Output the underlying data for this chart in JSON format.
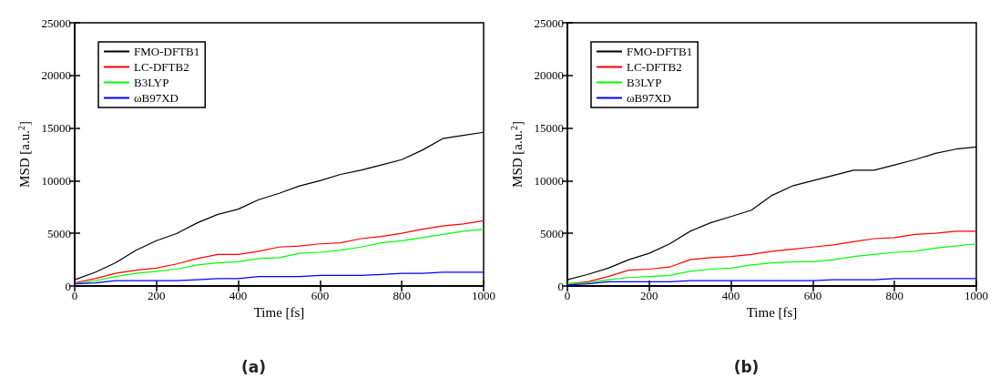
{
  "chart_data": [
    {
      "type": "line",
      "title": "(a)",
      "xlabel": "Time [fs]",
      "ylabel": "MSD [a.u.$^{2}$]",
      "xlim": [
        0,
        1000
      ],
      "xticks": [
        0,
        200,
        400,
        600,
        800,
        1000
      ],
      "ylim": [
        0,
        25000
      ],
      "yticks": [
        0,
        5000,
        10000,
        15000,
        20000,
        25000
      ],
      "grid": false,
      "legend": "top left",
      "marker": "none",
      "line_style": "solid",
      "x": [
        0,
        50,
        100,
        150,
        200,
        250,
        300,
        350,
        400,
        450,
        500,
        550,
        600,
        650,
        700,
        750,
        800,
        850,
        900,
        950,
        1000
      ],
      "series": [
        {
          "name": "FMO-DFTB1",
          "color": "#000000",
          "values": [
            600,
            1300,
            2200,
            3400,
            4300,
            5000,
            6000,
            6800,
            7300,
            8200,
            8800,
            9500,
            10000,
            10600,
            11000,
            11500,
            12000,
            12900,
            14000,
            14300,
            14600
          ]
        },
        {
          "name": "LC-DFTB2",
          "color": "#ff0000",
          "values": [
            300,
            700,
            1200,
            1500,
            1700,
            2100,
            2600,
            3000,
            3000,
            3300,
            3700,
            3800,
            4000,
            4100,
            4500,
            4700,
            5000,
            5400,
            5700,
            5900,
            6200
          ]
        },
        {
          "name": "B3LYP",
          "color": "#00ff00",
          "values": [
            200,
            500,
            900,
            1200,
            1400,
            1600,
            2000,
            2200,
            2300,
            2600,
            2700,
            3100,
            3200,
            3400,
            3700,
            4100,
            4300,
            4600,
            4900,
            5200,
            5400
          ]
        },
        {
          "name": "ωB97XD",
          "color": "#0000ff",
          "values": [
            200,
            300,
            500,
            500,
            500,
            500,
            600,
            700,
            700,
            900,
            900,
            900,
            1000,
            1000,
            1000,
            1100,
            1200,
            1200,
            1300,
            1300,
            1300
          ]
        }
      ]
    },
    {
      "type": "line",
      "title": "(b)",
      "xlabel": "Time [fs]",
      "ylabel": "MSD [a.u.$^{2}$]",
      "xlim": [
        0,
        1000
      ],
      "xticks": [
        0,
        200,
        400,
        600,
        800,
        1000
      ],
      "ylim": [
        0,
        25000
      ],
      "yticks": [
        0,
        5000,
        10000,
        15000,
        20000,
        25000
      ],
      "grid": false,
      "legend": "top left",
      "marker": "none",
      "line_style": "solid",
      "x": [
        0,
        50,
        100,
        150,
        200,
        250,
        300,
        350,
        400,
        450,
        500,
        550,
        600,
        650,
        700,
        750,
        800,
        850,
        900,
        950,
        1000
      ],
      "series": [
        {
          "name": "FMO-DFTB1",
          "color": "#000000",
          "values": [
            600,
            1100,
            1700,
            2500,
            3100,
            4000,
            5200,
            6000,
            6600,
            7200,
            8600,
            9500,
            10000,
            10500,
            11000,
            11000,
            11500,
            12000,
            12600,
            13000,
            13200
          ]
        },
        {
          "name": "LC-DFTB2",
          "color": "#ff0000",
          "values": [
            200,
            400,
            900,
            1500,
            1600,
            1800,
            2500,
            2700,
            2800,
            3000,
            3300,
            3500,
            3700,
            3900,
            4200,
            4500,
            4600,
            4900,
            5000,
            5200,
            5200
          ]
        },
        {
          "name": "B3LYP",
          "color": "#00ff00",
          "values": [
            200,
            300,
            600,
            800,
            900,
            1000,
            1400,
            1600,
            1700,
            2000,
            2200,
            2300,
            2300,
            2500,
            2800,
            3000,
            3200,
            3300,
            3600,
            3800,
            4000
          ]
        },
        {
          "name": "ωB97XD",
          "color": "#0000ff",
          "values": [
            100,
            200,
            400,
            400,
            400,
            400,
            500,
            500,
            500,
            500,
            500,
            500,
            500,
            600,
            600,
            600,
            700,
            700,
            700,
            700,
            700
          ]
        }
      ]
    }
  ]
}
